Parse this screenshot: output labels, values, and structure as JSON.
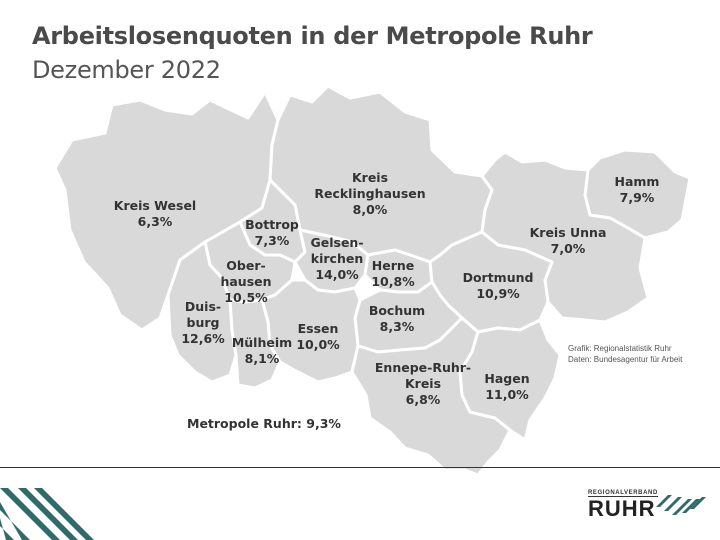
{
  "title": "Arbeitslosenquoten in der Metropole Ruhr",
  "subtitle": "Dezember 2022",
  "colors": {
    "region_fill": "#d9d9d9",
    "border": "#ffffff",
    "accent_stripes": "#2f6b6b"
  },
  "regions": [
    {
      "key": "wesel",
      "name": "Kreis Wesel",
      "value": "6,3%"
    },
    {
      "key": "recklinghausen",
      "name": "Kreis Recklinghausen",
      "value": "8,0%"
    },
    {
      "key": "hamm",
      "name": "Hamm",
      "value": "7,9%"
    },
    {
      "key": "unna",
      "name": "Kreis Unna",
      "value": "7,0%"
    },
    {
      "key": "bottrop",
      "name": "Bottrop",
      "value": "7,3%"
    },
    {
      "key": "gelsenkirchen",
      "name": "Gelsen-kirchen",
      "value": "14,0%"
    },
    {
      "key": "oberhausen",
      "name": "Ober-hausen",
      "value": "10,5%"
    },
    {
      "key": "herne",
      "name": "Herne",
      "value": "10,8%"
    },
    {
      "key": "dortmund",
      "name": "Dortmund",
      "value": "10,9%"
    },
    {
      "key": "duisburg",
      "name": "Duis-burg",
      "value": "12,6%"
    },
    {
      "key": "bochum",
      "name": "Bochum",
      "value": "8,3%"
    },
    {
      "key": "essen",
      "name": "Essen",
      "value": "10,0%"
    },
    {
      "key": "muelheim",
      "name": "Mülheim",
      "value": "8,1%"
    },
    {
      "key": "ennepe",
      "name": "Ennepe-Ruhr-Kreis",
      "value": "6,8%"
    },
    {
      "key": "hagen",
      "name": "Hagen",
      "value": "11,0%"
    }
  ],
  "label_lines": {
    "wesel": [
      "Kreis Wesel"
    ],
    "recklinghausen": [
      "Kreis",
      "Recklinghausen"
    ],
    "hamm": [
      "Hamm"
    ],
    "unna": [
      "Kreis Unna"
    ],
    "bottrop": [
      "Bottrop"
    ],
    "gelsenkirchen": [
      "Gelsen-",
      "kirchen"
    ],
    "oberhausen": [
      "Ober-",
      "hausen"
    ],
    "herne": [
      "Herne"
    ],
    "dortmund": [
      "Dortmund"
    ],
    "duisburg": [
      "Duis-",
      "burg"
    ],
    "bochum": [
      "Bochum"
    ],
    "essen": [
      "Essen"
    ],
    "muelheim": [
      "Mülheim"
    ],
    "ennepe": [
      "Ennepe-Ruhr-",
      "Kreis"
    ],
    "hagen": [
      "Hagen"
    ]
  },
  "summary": {
    "label": "Metropole Ruhr:",
    "value": "9,3%"
  },
  "source": {
    "line1": "Grafik: Regionalstatistik Ruhr",
    "line2": "Daten: Bundesagentur für Arbeit"
  },
  "logo": {
    "top": "REGIONALVERBAND",
    "main": "RUHR"
  }
}
